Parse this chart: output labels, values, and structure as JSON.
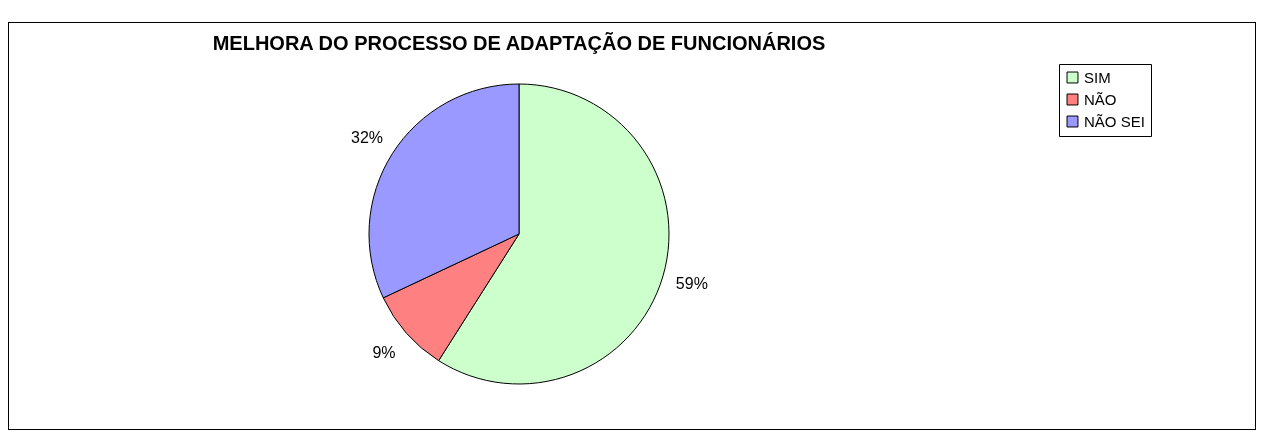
{
  "chart_data": {
    "type": "pie",
    "title": "MELHORA DO PROCESSO DE ADAPTAÇÃO DE FUNCIONÁRIOS",
    "categories": [
      "SIM",
      "NÃO",
      "NÃO SEI"
    ],
    "values": [
      59,
      9,
      32
    ],
    "colors": [
      "#ccffcc",
      "#ff8080",
      "#9999ff"
    ],
    "value_labels": [
      "59%",
      "9%",
      "32%"
    ],
    "legend": "right"
  }
}
